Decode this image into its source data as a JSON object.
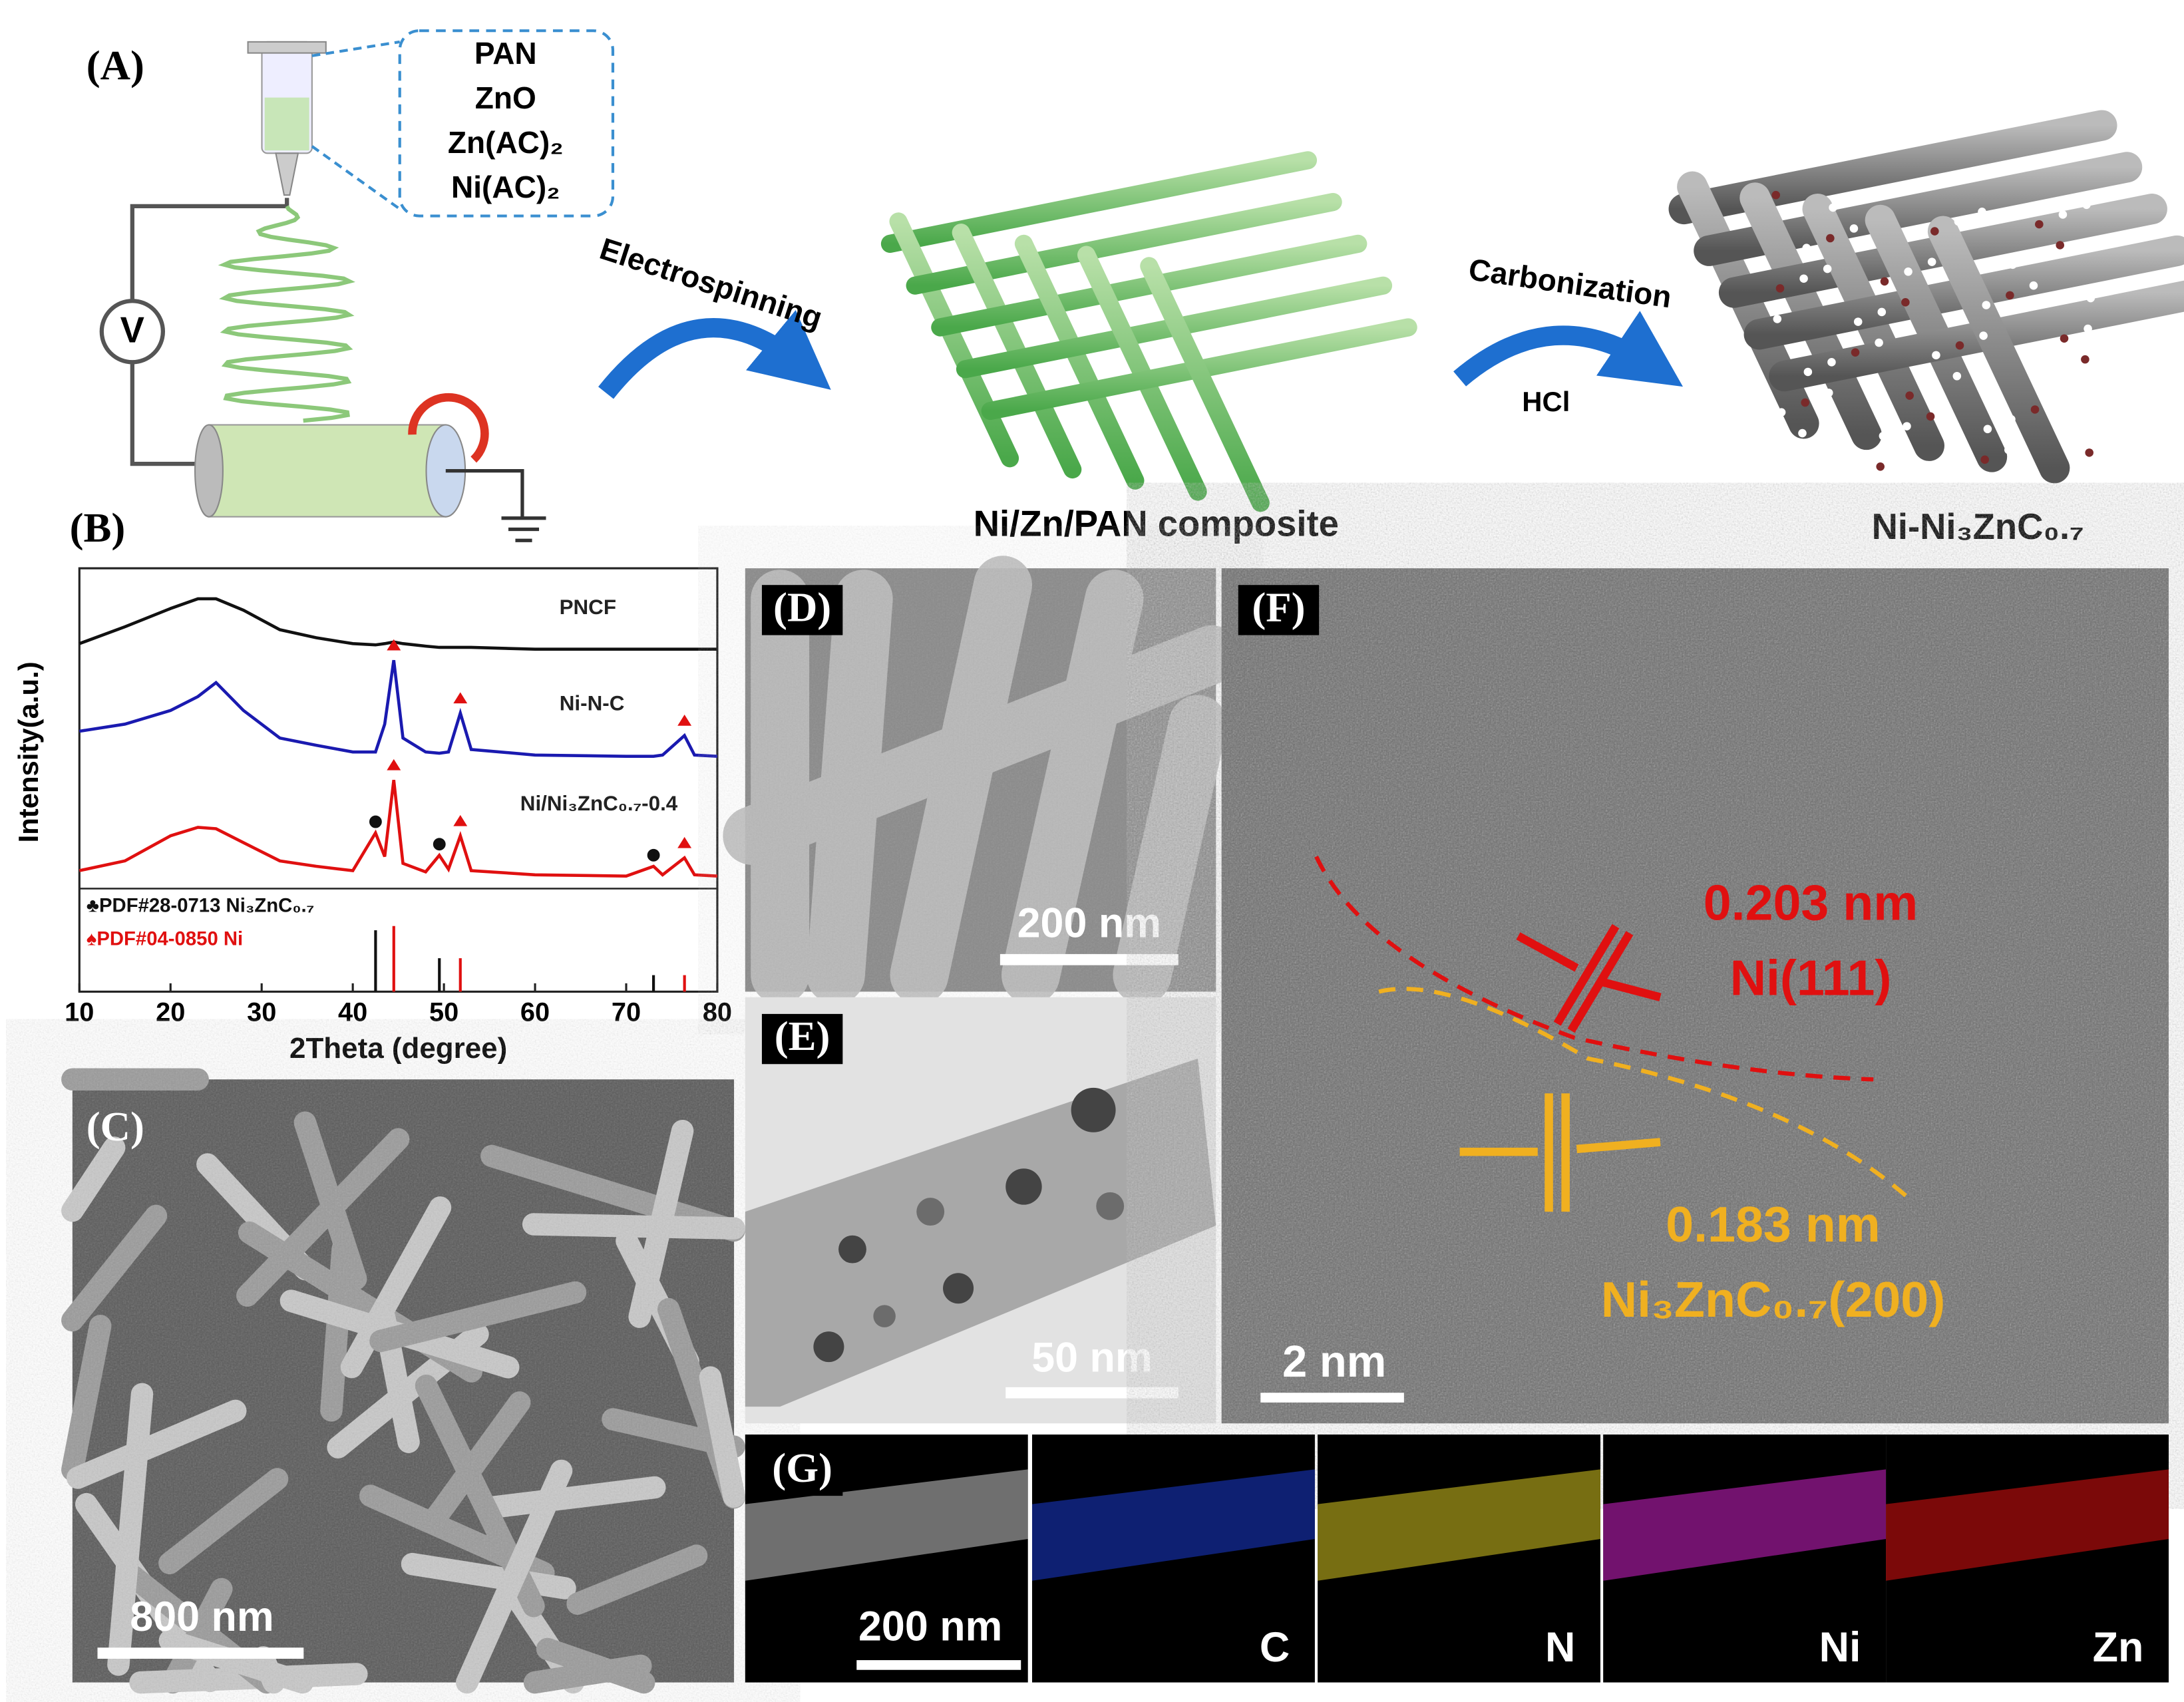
{
  "panel_labels": {
    "a": "(A)",
    "b": "(B)",
    "c": "(C)",
    "d": "(D)",
    "e": "(E)",
    "f": "(F)",
    "g": "(G)"
  },
  "schematic": {
    "solution": [
      "PAN",
      "ZnO",
      "Zn(AC)₂",
      "Ni(AC)₂"
    ],
    "voltmeter": "V",
    "step1": "Electrospinning",
    "step2": "Carbonization",
    "step2_reagent": "HCl",
    "product1": "Ni/Zn/PAN composite",
    "product2": "Ni-Ni₃ZnC₀.₇"
  },
  "chart_data": {
    "type": "line",
    "xlabel": "2Theta (degree)",
    "ylabel": "Intensity(a.u.)",
    "xlim": [
      10,
      80
    ],
    "xticks": [
      10,
      20,
      30,
      40,
      50,
      60,
      70,
      80
    ],
    "ylim": [
      0,
      100
    ],
    "x": [
      10,
      15,
      20,
      23,
      25,
      28,
      32,
      36,
      40,
      42.5,
      43.5,
      44.5,
      45.5,
      48,
      49.5,
      50.5,
      51.8,
      53,
      60,
      70,
      73,
      74,
      76.4,
      77.5,
      80
    ],
    "series": [
      {
        "name": "PNCF",
        "color": "#111111",
        "values": [
          82.2,
          86.2,
          90.5,
          92.8,
          92.8,
          90.1,
          85.5,
          83.6,
          82.2,
          81.9,
          82.2,
          82.6,
          82.2,
          81.6,
          81.3,
          81.3,
          81.3,
          81.3,
          80.9,
          80.9,
          80.9,
          80.9,
          80.9,
          80.9,
          80.9
        ]
      },
      {
        "name": "Ni-N-C",
        "color": "#1a1ab0",
        "values": [
          61.5,
          63.2,
          66.4,
          69.7,
          73.0,
          66.4,
          59.9,
          58.2,
          56.6,
          56.6,
          63.2,
          78.3,
          59.9,
          56.6,
          56.3,
          56.6,
          65.8,
          57.2,
          55.9,
          55.6,
          55.6,
          55.9,
          60.5,
          55.9,
          55.6
        ]
      },
      {
        "name": "Ni/Ni₃ZnC₀.₇-0.4",
        "color": "#e01010",
        "values": [
          28.6,
          30.9,
          36.8,
          38.8,
          38.5,
          35.2,
          30.9,
          29.6,
          28.6,
          37.5,
          31.9,
          50.0,
          30.3,
          28.3,
          32.2,
          28.9,
          36.8,
          28.6,
          27.6,
          27.3,
          29.6,
          27.6,
          31.6,
          27.6,
          27.3
        ]
      }
    ],
    "reference": [
      {
        "name": "♣PDF#28-0713  Ni₃ZnC₀.₇",
        "color": "#111111",
        "x": [
          42.5,
          49.5,
          73
        ],
        "values": [
          14.5,
          7.9,
          3.9
        ]
      },
      {
        "name": "♠PDF#04-0850  Ni",
        "color": "#e01010",
        "x": [
          44.5,
          51.8,
          76.4
        ],
        "values": [
          15.5,
          7.9,
          3.9
        ]
      }
    ]
  },
  "micrographs": {
    "c_scale": "800 nm",
    "d_scale": "200 nm",
    "e_scale": "50 nm",
    "f_scale": "2 nm",
    "f_d1": "0.203 nm",
    "f_p1": "Ni(111)",
    "f_d2": "0.183 nm",
    "f_p2": "Ni₃ZnC₀.₇(200)",
    "g_scale": "200 nm",
    "g_maps": [
      "C",
      "N",
      "Ni",
      "Zn"
    ]
  }
}
